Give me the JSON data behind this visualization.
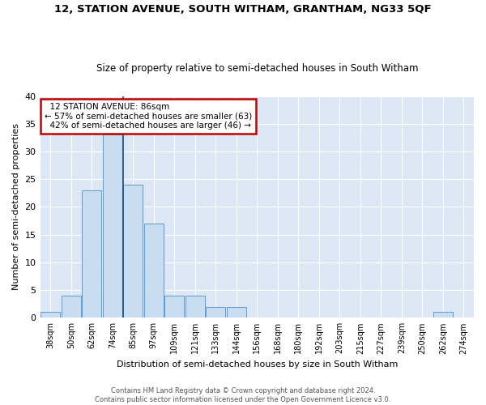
{
  "title_line1": "12, STATION AVENUE, SOUTH WITHAM, GRANTHAM, NG33 5QF",
  "title_line2": "Size of property relative to semi-detached houses in South Witham",
  "xlabel": "Distribution of semi-detached houses by size in South Witham",
  "ylabel": "Number of semi-detached properties",
  "footnote": "Contains HM Land Registry data © Crown copyright and database right 2024.\nContains public sector information licensed under the Open Government Licence v3.0.",
  "bin_labels": [
    "38sqm",
    "50sqm",
    "62sqm",
    "74sqm",
    "85sqm",
    "97sqm",
    "109sqm",
    "121sqm",
    "133sqm",
    "144sqm",
    "156sqm",
    "168sqm",
    "180sqm",
    "192sqm",
    "203sqm",
    "215sqm",
    "227sqm",
    "239sqm",
    "250sqm",
    "262sqm",
    "274sqm"
  ],
  "bin_values": [
    1,
    4,
    23,
    33,
    24,
    17,
    4,
    4,
    2,
    2,
    0,
    0,
    0,
    0,
    0,
    0,
    0,
    0,
    0,
    1,
    0
  ],
  "bar_color": "#c9ddf0",
  "bar_edge_color": "#5b9bd5",
  "highlight_bin_index": 4,
  "highlight_line_color": "#1f4e79",
  "property_size": "86sqm",
  "pct_smaller": 57,
  "count_smaller": 63,
  "pct_larger": 42,
  "count_larger": 46,
  "annotation_label": "12 STATION AVENUE: 86sqm",
  "annotation_box_color": "#ffffff",
  "annotation_box_edgecolor": "#c00000",
  "ylim": [
    0,
    40
  ],
  "yticks": [
    0,
    5,
    10,
    15,
    20,
    25,
    30,
    35,
    40
  ],
  "axes_background": "#dce6f5",
  "fig_background": "#ffffff"
}
